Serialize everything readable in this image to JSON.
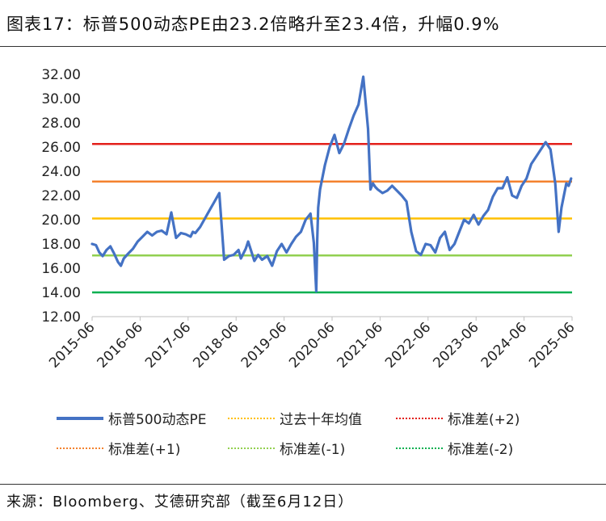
{
  "title": "图表17：标普500动态PE由23.2倍略升至23.4倍，升幅0.9%",
  "source": "来源：Bloomberg、艾德研究部（截至6月12日）",
  "chart_data": {
    "type": "line",
    "title": "图表17：标普500动态PE由23.2倍略升至23.4倍，升幅0.9%",
    "ylim": [
      12,
      32
    ],
    "y_ticks": [
      "12.00",
      "14.00",
      "16.00",
      "18.00",
      "20.00",
      "22.00",
      "24.00",
      "26.00",
      "28.00",
      "30.00",
      "32.00"
    ],
    "x_ticks": [
      "2015-06",
      "2016-06",
      "2017-06",
      "2018-06",
      "2019-06",
      "2020-06",
      "2021-06",
      "2022-06",
      "2023-06",
      "2024-06",
      "2025-06"
    ],
    "x_range": [
      2015.5,
      2025.5
    ],
    "series": [
      {
        "name": "标普500动态PE",
        "color": "#4472C4",
        "type": "line",
        "x": [
          2015.5,
          2015.58,
          2015.65,
          2015.72,
          2015.8,
          2015.88,
          2015.96,
          2016.04,
          2016.1,
          2016.16,
          2016.25,
          2016.35,
          2016.45,
          2016.55,
          2016.65,
          2016.75,
          2016.85,
          2016.95,
          2017.05,
          2017.15,
          2017.25,
          2017.35,
          2017.45,
          2017.55,
          2017.6,
          2017.65,
          2017.75,
          2017.85,
          2017.95,
          2018.05,
          2018.15,
          2018.25,
          2018.35,
          2018.45,
          2018.55,
          2018.6,
          2018.65,
          2018.7,
          2018.75,
          2018.8,
          2018.88,
          2018.96,
          2019.04,
          2019.15,
          2019.25,
          2019.35,
          2019.45,
          2019.55,
          2019.65,
          2019.75,
          2019.85,
          2019.95,
          2020.05,
          2020.12,
          2020.17,
          2020.19,
          2020.21,
          2020.25,
          2020.35,
          2020.45,
          2020.55,
          2020.65,
          2020.75,
          2020.85,
          2020.95,
          2021.05,
          2021.15,
          2021.25,
          2021.3,
          2021.35,
          2021.4,
          2021.45,
          2021.55,
          2021.65,
          2021.75,
          2021.85,
          2021.95,
          2022.05,
          2022.15,
          2022.25,
          2022.35,
          2022.45,
          2022.55,
          2022.65,
          2022.75,
          2022.85,
          2022.95,
          2023.05,
          2023.15,
          2023.25,
          2023.35,
          2023.45,
          2023.55,
          2023.65,
          2023.75,
          2023.85,
          2023.95,
          2024.05,
          2024.15,
          2024.25,
          2024.35,
          2024.45,
          2024.55,
          2024.65,
          2024.75,
          2024.85,
          2024.95,
          2025.05,
          2025.15,
          2025.22,
          2025.28,
          2025.33,
          2025.38,
          2025.43,
          2025.48
        ],
        "values": [
          18.0,
          17.9,
          17.3,
          17.0,
          17.5,
          17.8,
          17.2,
          16.5,
          16.2,
          16.8,
          17.2,
          17.6,
          18.2,
          18.6,
          19.0,
          18.7,
          19.0,
          19.1,
          18.8,
          20.6,
          18.5,
          18.9,
          18.8,
          18.6,
          19.0,
          18.9,
          19.4,
          20.1,
          20.8,
          21.5,
          22.2,
          16.7,
          17.0,
          17.1,
          17.5,
          16.8,
          17.2,
          17.6,
          18.2,
          17.6,
          16.6,
          17.1,
          16.7,
          17.0,
          16.2,
          17.4,
          18.0,
          17.3,
          18.0,
          18.6,
          19.0,
          20.0,
          20.5,
          18.1,
          14.1,
          18.3,
          21.0,
          22.5,
          24.5,
          26.0,
          27.0,
          25.5,
          26.3,
          27.5,
          28.6,
          29.5,
          31.8,
          27.5,
          22.5,
          23.0,
          22.7,
          22.5,
          22.2,
          22.4,
          22.8,
          22.4,
          22.0,
          21.5,
          19.0,
          17.4,
          17.1,
          18.0,
          17.9,
          17.3,
          18.5,
          19.0,
          17.5,
          18.0,
          19.0,
          20.0,
          19.7,
          20.4,
          19.6,
          20.3,
          20.8,
          21.9,
          22.6,
          22.6,
          23.5,
          22.0,
          21.8,
          22.8,
          23.4,
          24.6,
          25.2,
          25.8,
          26.4,
          25.8,
          23.0,
          19.0,
          21.0,
          22.0,
          23.0,
          22.8,
          23.4
        ]
      },
      {
        "name": "过去十年均值",
        "color": "#FFC000",
        "type": "hline",
        "value": 20.1
      },
      {
        "name": "标准差(+2)",
        "color": "#E3201B",
        "type": "hline",
        "value": 26.25
      },
      {
        "name": "标准差(+1)",
        "color": "#F4822E",
        "type": "hline",
        "value": 23.15
      },
      {
        "name": "标准差(-1)",
        "color": "#92D050",
        "type": "hline",
        "value": 17.05
      },
      {
        "name": "标准差(-2)",
        "color": "#00B050",
        "type": "hline",
        "value": 14.0
      }
    ]
  }
}
